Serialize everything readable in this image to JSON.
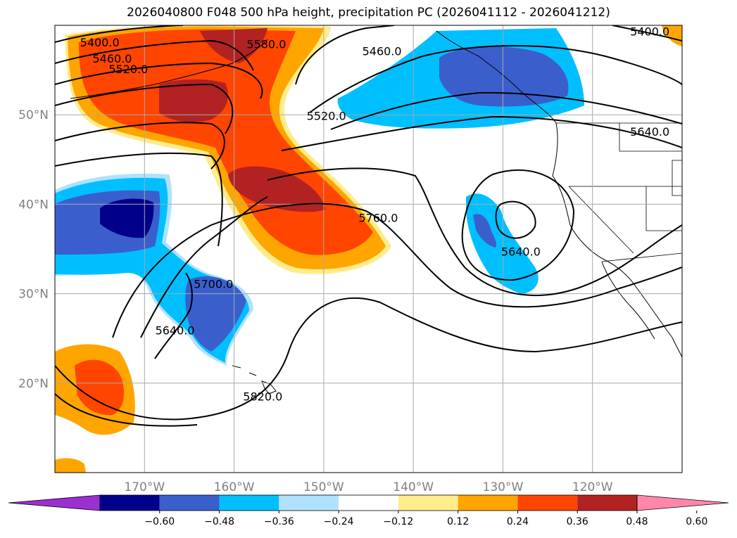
{
  "title": "2026040800 F048 500 hPa height, precipitation PC (2026041112 - 2026041212)",
  "map": {
    "lon_range": [
      -180,
      -110
    ],
    "lat_range": [
      10,
      60
    ],
    "lat_ticks": [
      {
        "lat": 50,
        "label": "50°N"
      },
      {
        "lat": 40,
        "label": "40°N"
      },
      {
        "lat": 30,
        "label": "30°N"
      },
      {
        "lat": 20,
        "label": "20°N"
      }
    ],
    "lon_ticks": [
      {
        "lon": -170,
        "label": "170°W"
      },
      {
        "lon": -160,
        "label": "160°W"
      },
      {
        "lon": -150,
        "label": "150°W"
      },
      {
        "lon": -140,
        "label": "140°W"
      },
      {
        "lon": -130,
        "label": "130°W"
      },
      {
        "lon": -120,
        "label": "120°W"
      }
    ],
    "gridlines": true
  },
  "contour_labels": [
    {
      "text": "5400.0",
      "lon": -175,
      "lat": 57.8
    },
    {
      "text": "5460.0",
      "lon": -173.6,
      "lat": 56.0
    },
    {
      "text": "5520.0",
      "lon": -171.8,
      "lat": 54.8
    },
    {
      "text": "5580.0",
      "lon": -156.4,
      "lat": 57.6
    },
    {
      "text": "5460.0",
      "lon": -143.5,
      "lat": 56.8
    },
    {
      "text": "5520.0",
      "lon": -149.7,
      "lat": 49.6
    },
    {
      "text": "5400.0",
      "lon": -113.6,
      "lat": 59.0
    },
    {
      "text": "5640.0",
      "lon": -113.6,
      "lat": 47.8
    },
    {
      "text": "5760.0",
      "lon": -143.9,
      "lat": 38.2
    },
    {
      "text": "5640.0",
      "lon": -128.0,
      "lat": 34.4
    },
    {
      "text": "5700.0",
      "lon": -162.3,
      "lat": 30.8
    },
    {
      "text": "5640.0",
      "lon": -166.6,
      "lat": 25.6
    },
    {
      "text": "5820.0",
      "lon": -156.8,
      "lat": 18.2
    }
  ],
  "colorbar": {
    "colors": [
      "#9b30d0",
      "#00008b",
      "#3a5fcd",
      "#00bfff",
      "#b0e2ff",
      "#ffffff",
      "#ffec8b",
      "#ffa500",
      "#ff4500",
      "#b22222",
      "#ff88aa"
    ],
    "tick_labels": [
      "−0.60",
      "−0.48",
      "−0.36",
      "−0.24",
      "−0.12",
      "0.12",
      "0.24",
      "0.36",
      "0.48",
      "0.60"
    ]
  }
}
